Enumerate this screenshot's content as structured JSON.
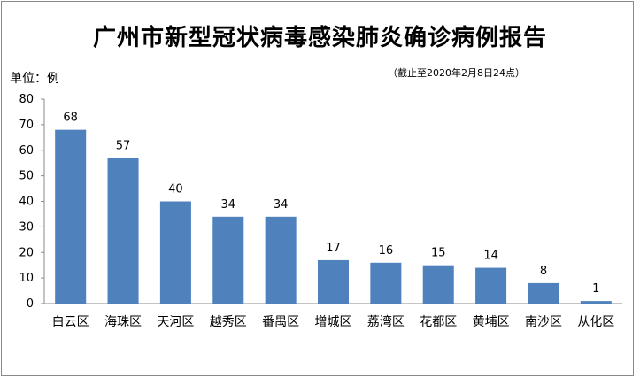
{
  "chart_data": {
    "type": "bar",
    "title": "广州市新型冠状病毒感染肺炎确诊病例报告",
    "ylabel": "单位：例",
    "note": "（截止至2020年2月8日24点）",
    "categories": [
      "白云区",
      "海珠区",
      "天河区",
      "越秀区",
      "番禺区",
      "增城区",
      "荔湾区",
      "花都区",
      "黄埔区",
      "南沙区",
      "从化区"
    ],
    "values": [
      68,
      57,
      40,
      34,
      34,
      17,
      16,
      15,
      14,
      8,
      1
    ],
    "ylim": [
      0,
      80
    ],
    "yticks": [
      0,
      10,
      20,
      30,
      40,
      50,
      60,
      70,
      80
    ],
    "grid": false,
    "legend": "none",
    "bar_color": "#4f81bd"
  }
}
